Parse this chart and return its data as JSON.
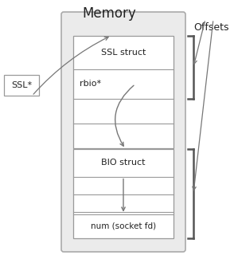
{
  "title": "Memory",
  "bg_color": "#ebebeb",
  "inner_box_color": "#ffffff",
  "border_color": "#999999",
  "arrow_color": "#777777",
  "text_color": "#222222",
  "offsets_label": "Offsets",
  "ssl_ptr_label": "SSL*",
  "ssl_struct_label": "SSL struct",
  "rbio_label": "rbio*",
  "bio_struct_label": "BIO struct",
  "num_label": "num (socket fd)",
  "title_fontsize": 12,
  "label_fontsize": 8,
  "bracket_color": "#555555",
  "figw": 2.94,
  "figh": 3.25,
  "dpi": 100
}
